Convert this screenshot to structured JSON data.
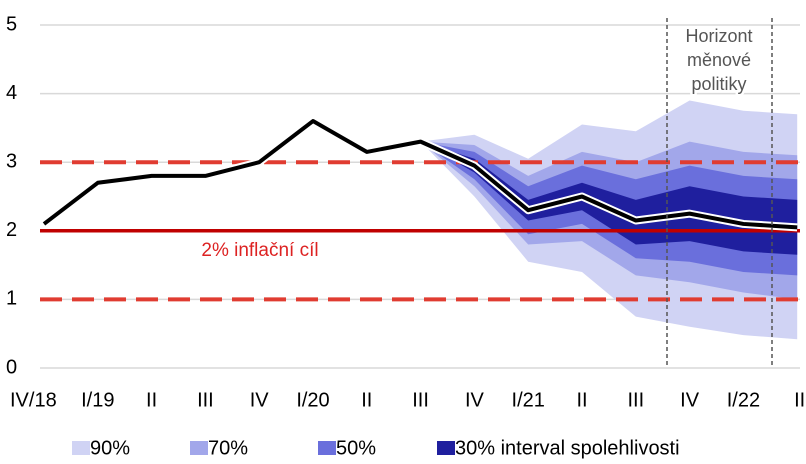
{
  "chart_data": {
    "type": "fan",
    "categories": [
      "IV/18",
      "I/19",
      "II",
      "III",
      "IV",
      "I/20",
      "II",
      "III",
      "IV",
      "I/21",
      "II",
      "III",
      "IV",
      "I/22",
      "II"
    ],
    "ylim": [
      0,
      5
    ],
    "yticks": [
      0,
      1,
      2,
      3,
      4,
      5
    ],
    "grid": true,
    "line": {
      "color": "#000000",
      "values": [
        2.1,
        2.7,
        2.8,
        2.8,
        3.0,
        3.6,
        3.15,
        3.3,
        2.95,
        2.3,
        2.5,
        2.15,
        2.25,
        2.1,
        2.05
      ]
    },
    "series": [
      {
        "name": "90%",
        "color": "#d0d3f4",
        "lower": [
          null,
          null,
          null,
          null,
          null,
          null,
          null,
          3.3,
          2.5,
          1.55,
          1.4,
          0.75,
          0.6,
          0.48,
          0.42
        ],
        "upper": [
          null,
          null,
          null,
          null,
          null,
          null,
          null,
          3.3,
          3.4,
          3.05,
          3.55,
          3.45,
          3.9,
          3.75,
          3.7
        ]
      },
      {
        "name": "70%",
        "color": "#a2a7ea",
        "lower": [
          null,
          null,
          null,
          null,
          null,
          null,
          null,
          3.3,
          2.65,
          1.8,
          1.85,
          1.35,
          1.25,
          1.1,
          1.0
        ],
        "upper": [
          null,
          null,
          null,
          null,
          null,
          null,
          null,
          3.3,
          3.25,
          2.8,
          3.15,
          3.0,
          3.3,
          3.15,
          3.1
        ]
      },
      {
        "name": "50%",
        "color": "#6a6fdc",
        "lower": [
          null,
          null,
          null,
          null,
          null,
          null,
          null,
          3.3,
          2.75,
          1.95,
          2.1,
          1.6,
          1.55,
          1.4,
          1.35
        ],
        "upper": [
          null,
          null,
          null,
          null,
          null,
          null,
          null,
          3.3,
          3.15,
          2.65,
          2.95,
          2.75,
          2.95,
          2.8,
          2.75
        ]
      },
      {
        "name": "30% interval spolehlivosti",
        "color": "#1f1f9e",
        "lower": [
          null,
          null,
          null,
          null,
          null,
          null,
          null,
          3.3,
          2.85,
          2.15,
          2.3,
          1.8,
          1.85,
          1.7,
          1.65
        ],
        "upper": [
          null,
          null,
          null,
          null,
          null,
          null,
          null,
          3.3,
          3.05,
          2.45,
          2.7,
          2.45,
          2.65,
          2.5,
          2.45
        ]
      }
    ],
    "reference_lines": [
      {
        "value": 1,
        "style": "dashed",
        "color": "#e03c31"
      },
      {
        "value": 3,
        "style": "dashed",
        "color": "#e03c31"
      },
      {
        "value": 2,
        "style": "solid",
        "color": "#c00000"
      }
    ],
    "target_label": "2% inflační cíl",
    "horizon_label": [
      "Horizont",
      "měnové",
      "politiky"
    ]
  }
}
